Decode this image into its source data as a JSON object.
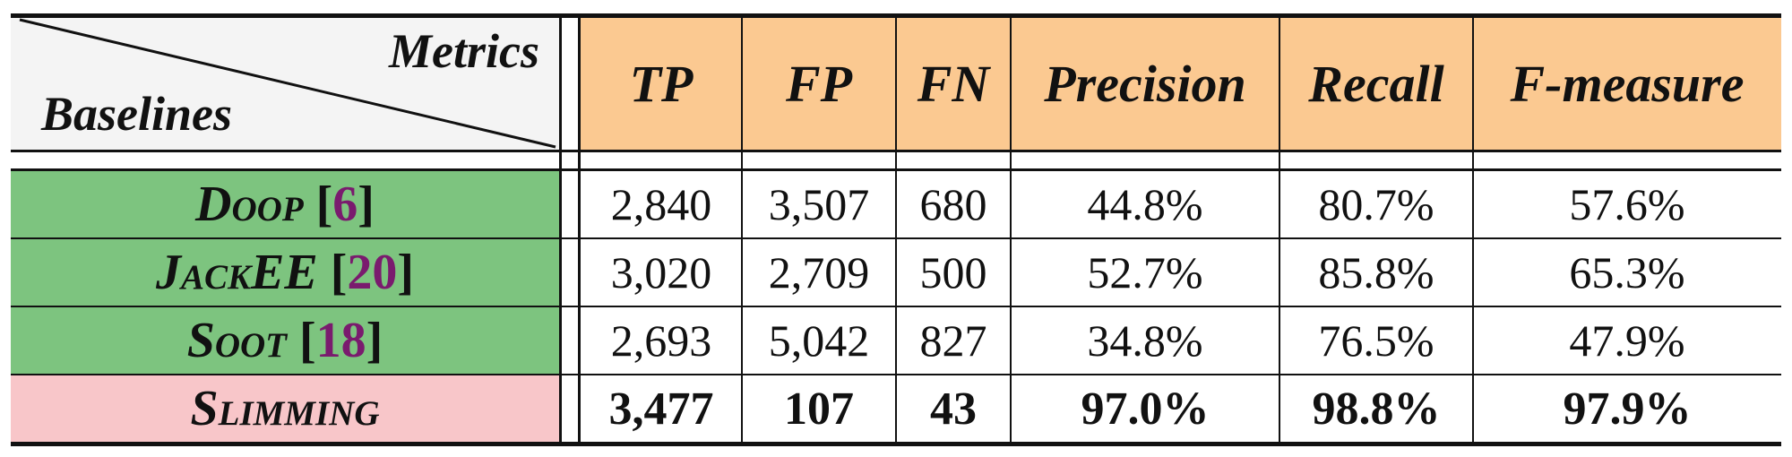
{
  "table": {
    "corner": {
      "top_label": "Metrics",
      "bottom_label": "Baselines"
    },
    "columns": [
      "TP",
      "FP",
      "FN",
      "Precision",
      "Recall",
      "F-measure"
    ],
    "rows": [
      {
        "name": "Doop",
        "cite": "6",
        "cells": [
          "2,840",
          "3,507",
          "680",
          "44.8%",
          "80.7%",
          "57.6%"
        ],
        "highlight": false
      },
      {
        "name": "JackEE",
        "cite": "20",
        "cells": [
          "3,020",
          "2,709",
          "500",
          "52.7%",
          "85.8%",
          "65.3%"
        ],
        "highlight": false
      },
      {
        "name": "Soot",
        "cite": "18",
        "cells": [
          "2,693",
          "5,042",
          "827",
          "34.8%",
          "76.5%",
          "47.9%"
        ],
        "highlight": false
      },
      {
        "name": "Slimming",
        "cite": "",
        "cells": [
          "3,477",
          "107",
          "43",
          "97.0%",
          "98.8%",
          "97.9%"
        ],
        "highlight": true
      }
    ],
    "colors": {
      "header": "#fbc991",
      "baseline": "#7dc47f",
      "ours": "#f8c6c9",
      "citation": "#7a1b6e"
    }
  }
}
